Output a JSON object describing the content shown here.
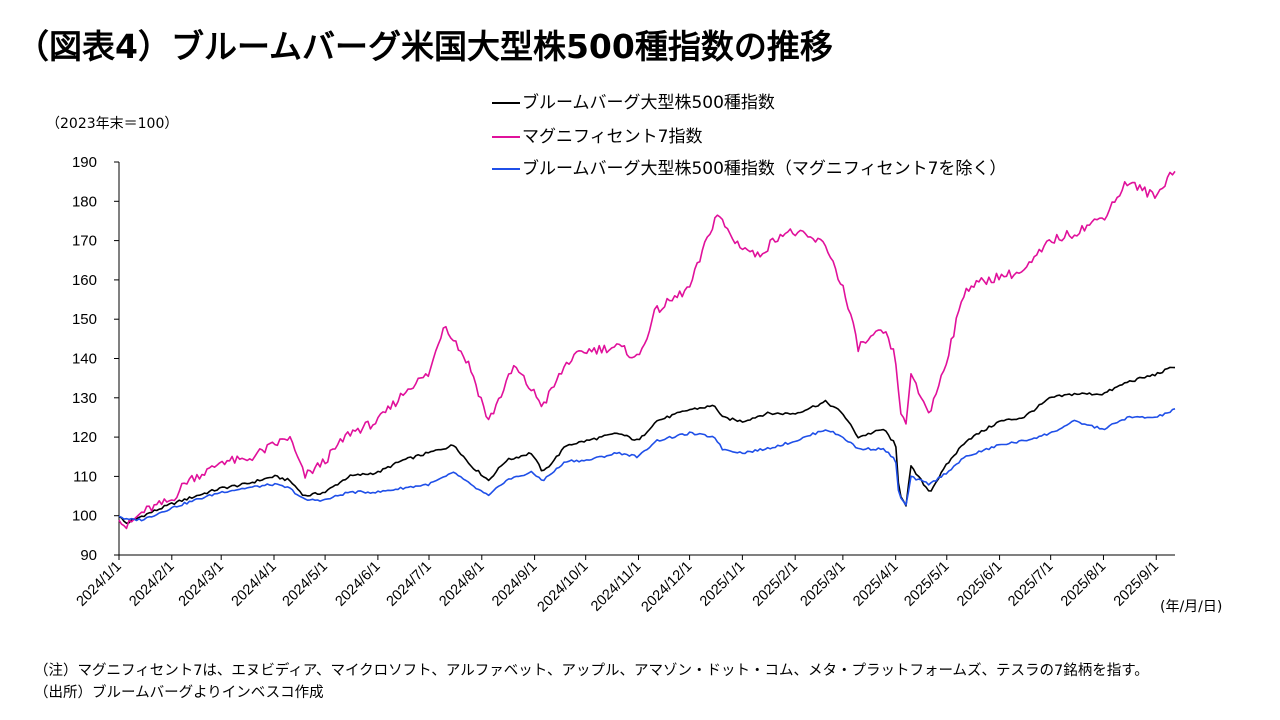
{
  "title": "（図表4）ブルームバーグ米国大型株500種指数の推移",
  "ylabel": "（2023年末＝100）",
  "xunit": "(年/月/日)",
  "notes": [
    "（注）マグニフィセント7は、エヌビディア、マイクロソフト、アルファベット、アップル、アマゾン・ドット・コム、メタ・プラットフォームズ、テスラの7銘柄を指す。",
    "（出所）ブルームバーグよりインベスコ作成"
  ],
  "chart_data": {
    "type": "line",
    "ylim": [
      90,
      190
    ],
    "yticks": [
      90,
      100,
      110,
      120,
      130,
      140,
      150,
      160,
      170,
      180,
      190
    ],
    "xticks": [
      "2024/1/1",
      "2024/2/1",
      "2024/3/1",
      "2024/4/1",
      "2024/5/1",
      "2024/6/1",
      "2024/7/1",
      "2024/8/1",
      "2024/9/1",
      "2024/10/1",
      "2024/11/1",
      "2024/12/1",
      "2025/1/1",
      "2025/2/1",
      "2025/3/1",
      "2025/4/1",
      "2025/5/1",
      "2025/6/1",
      "2025/7/1",
      "2025/8/1",
      "2025/9/1"
    ],
    "x_end": "2025/9/12",
    "legend_position": "top",
    "series": [
      {
        "name": "ブルームバーグ大型株500種指数",
        "color": "#000000",
        "points": [
          [
            "2024/1/1",
            100
          ],
          [
            "2024/1/5",
            98
          ],
          [
            "2024/1/15",
            100
          ],
          [
            "2024/2/1",
            103
          ],
          [
            "2024/2/15",
            105
          ],
          [
            "2024/3/1",
            107
          ],
          [
            "2024/3/15",
            108
          ],
          [
            "2024/4/1",
            110
          ],
          [
            "2024/4/10",
            109
          ],
          [
            "2024/4/19",
            105
          ],
          [
            "2024/5/1",
            106
          ],
          [
            "2024/5/15",
            110
          ],
          [
            "2024/6/1",
            111
          ],
          [
            "2024/6/15",
            114
          ],
          [
            "2024/7/1",
            116
          ],
          [
            "2024/7/16",
            118
          ],
          [
            "2024/7/25",
            113
          ],
          [
            "2024/8/5",
            109
          ],
          [
            "2024/8/15",
            114
          ],
          [
            "2024/8/30",
            116
          ],
          [
            "2024/9/6",
            111
          ],
          [
            "2024/9/20",
            118
          ],
          [
            "2024/10/1",
            119
          ],
          [
            "2024/10/20",
            121
          ],
          [
            "2024/11/1",
            119
          ],
          [
            "2024/11/11",
            124
          ],
          [
            "2024/12/1",
            127
          ],
          [
            "2024/12/16",
            128
          ],
          [
            "2024/12/20",
            125
          ],
          [
            "2025/1/1",
            124
          ],
          [
            "2025/1/15",
            126
          ],
          [
            "2025/2/1",
            126
          ],
          [
            "2025/2/19",
            129
          ],
          [
            "2025/3/1",
            126
          ],
          [
            "2025/3/10",
            120
          ],
          [
            "2025/3/25",
            122
          ],
          [
            "2025/4/1",
            118
          ],
          [
            "2025/4/3",
            106
          ],
          [
            "2025/4/8",
            102
          ],
          [
            "2025/4/9",
            113
          ],
          [
            "2025/4/21",
            106
          ],
          [
            "2025/5/1",
            113
          ],
          [
            "2025/5/12",
            119
          ],
          [
            "2025/6/1",
            124
          ],
          [
            "2025/6/15",
            125
          ],
          [
            "2025/7/1",
            130
          ],
          [
            "2025/7/15",
            131
          ],
          [
            "2025/8/1",
            131
          ],
          [
            "2025/8/15",
            134
          ],
          [
            "2025/9/1",
            136
          ],
          [
            "2025/9/12",
            138
          ]
        ]
      },
      {
        "name": "マグニフィセント7指数",
        "color": "#E0119B",
        "points": [
          [
            "2024/1/1",
            100
          ],
          [
            "2024/1/5",
            97
          ],
          [
            "2024/1/15",
            101
          ],
          [
            "2024/2/1",
            104
          ],
          [
            "2024/2/10",
            109
          ],
          [
            "2024/2/25",
            112
          ],
          [
            "2024/3/1",
            114
          ],
          [
            "2024/3/15",
            114
          ],
          [
            "2024/4/1",
            118
          ],
          [
            "2024/4/10",
            120
          ],
          [
            "2024/4/19",
            110
          ],
          [
            "2024/5/1",
            114
          ],
          [
            "2024/5/15",
            121
          ],
          [
            "2024/6/1",
            124
          ],
          [
            "2024/6/20",
            133
          ],
          [
            "2024/7/1",
            136
          ],
          [
            "2024/7/10",
            149
          ],
          [
            "2024/7/25",
            138
          ],
          [
            "2024/8/5",
            124
          ],
          [
            "2024/8/20",
            138
          ],
          [
            "2024/9/6",
            128
          ],
          [
            "2024/9/20",
            139
          ],
          [
            "2024/10/1",
            142
          ],
          [
            "2024/10/20",
            143
          ],
          [
            "2024/11/1",
            140
          ],
          [
            "2024/11/11",
            152
          ],
          [
            "2024/12/1",
            158
          ],
          [
            "2024/12/17",
            177
          ],
          [
            "2024/12/27",
            170
          ],
          [
            "2025/1/10",
            166
          ],
          [
            "2025/1/24",
            172
          ],
          [
            "2025/2/1",
            172
          ],
          [
            "2025/2/19",
            169
          ],
          [
            "2025/3/1",
            158
          ],
          [
            "2025/3/10",
            143
          ],
          [
            "2025/3/25",
            147
          ],
          [
            "2025/4/1",
            140
          ],
          [
            "2025/4/4",
            125
          ],
          [
            "2025/4/8",
            124
          ],
          [
            "2025/4/9",
            136
          ],
          [
            "2025/4/21",
            126
          ],
          [
            "2025/5/1",
            140
          ],
          [
            "2025/5/12",
            158
          ],
          [
            "2025/6/1",
            161
          ],
          [
            "2025/6/15",
            162
          ],
          [
            "2025/7/1",
            170
          ],
          [
            "2025/7/15",
            172
          ],
          [
            "2025/8/1",
            176
          ],
          [
            "2025/8/15",
            185
          ],
          [
            "2025/9/1",
            181
          ],
          [
            "2025/9/10",
            188
          ],
          [
            "2025/9/12",
            187
          ]
        ]
      },
      {
        "name": "ブルームバーグ大型株500種指数（マグニフィセント7を除く）",
        "color": "#1F4FE8",
        "points": [
          [
            "2024/1/1",
            100
          ],
          [
            "2024/1/5",
            99
          ],
          [
            "2024/1/15",
            99
          ],
          [
            "2024/2/1",
            102
          ],
          [
            "2024/2/15",
            104
          ],
          [
            "2024/3/1",
            106
          ],
          [
            "2024/3/15",
            107
          ],
          [
            "2024/4/1",
            108
          ],
          [
            "2024/4/10",
            107
          ],
          [
            "2024/4/19",
            104
          ],
          [
            "2024/5/1",
            104
          ],
          [
            "2024/5/15",
            106
          ],
          [
            "2024/6/1",
            106
          ],
          [
            "2024/6/15",
            107
          ],
          [
            "2024/7/1",
            108
          ],
          [
            "2024/7/16",
            111
          ],
          [
            "2024/7/25",
            108
          ],
          [
            "2024/8/5",
            105
          ],
          [
            "2024/8/15",
            109
          ],
          [
            "2024/8/30",
            111
          ],
          [
            "2024/9/6",
            109
          ],
          [
            "2024/9/20",
            114
          ],
          [
            "2024/10/1",
            114
          ],
          [
            "2024/10/20",
            116
          ],
          [
            "2024/11/1",
            115
          ],
          [
            "2024/11/11",
            119
          ],
          [
            "2024/12/1",
            121
          ],
          [
            "2024/12/16",
            120
          ],
          [
            "2024/12/20",
            117
          ],
          [
            "2025/1/1",
            116
          ],
          [
            "2025/1/15",
            117
          ],
          [
            "2025/2/1",
            119
          ],
          [
            "2025/2/19",
            122
          ],
          [
            "2025/3/1",
            120
          ],
          [
            "2025/3/10",
            117
          ],
          [
            "2025/3/25",
            117
          ],
          [
            "2025/4/1",
            114
          ],
          [
            "2025/4/3",
            105
          ],
          [
            "2025/4/8",
            102
          ],
          [
            "2025/4/9",
            110
          ],
          [
            "2025/4/21",
            108
          ],
          [
            "2025/5/1",
            111
          ],
          [
            "2025/5/12",
            115
          ],
          [
            "2025/6/1",
            118
          ],
          [
            "2025/6/15",
            119
          ],
          [
            "2025/7/1",
            121
          ],
          [
            "2025/7/15",
            124
          ],
          [
            "2025/8/1",
            122
          ],
          [
            "2025/8/15",
            125
          ],
          [
            "2025/9/1",
            125
          ],
          [
            "2025/9/12",
            127
          ]
        ]
      }
    ]
  }
}
